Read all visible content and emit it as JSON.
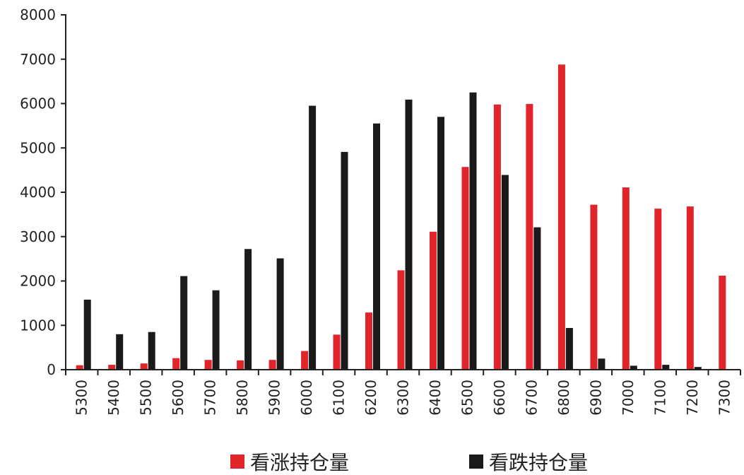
{
  "chart_data": {
    "type": "bar",
    "categories": [
      "5300",
      "5400",
      "5500",
      "5600",
      "5700",
      "5800",
      "5900",
      "6000",
      "6100",
      "6200",
      "6300",
      "6400",
      "6500",
      "6600",
      "6700",
      "6800",
      "6900",
      "7000",
      "7100",
      "7200",
      "7300"
    ],
    "series": [
      {
        "name": "看涨持仓量",
        "color": "#e0242a",
        "values": [
          100,
          110,
          140,
          260,
          220,
          210,
          220,
          420,
          790,
          1290,
          2240,
          3110,
          4570,
          5980,
          5990,
          6880,
          3720,
          4110,
          3630,
          3680,
          2120
        ]
      },
      {
        "name": "看跌持仓量",
        "color": "#1a1a1a",
        "values": [
          1580,
          800,
          850,
          2110,
          1790,
          2720,
          2510,
          5950,
          4910,
          5550,
          6090,
          5700,
          6250,
          4390,
          3210,
          940,
          250,
          90,
          110,
          60,
          0
        ]
      }
    ],
    "ylim": [
      0,
      8000
    ],
    "yticks": [
      0,
      1000,
      2000,
      3000,
      4000,
      5000,
      6000,
      7000,
      8000
    ],
    "grid": false,
    "legend": "bottom"
  }
}
